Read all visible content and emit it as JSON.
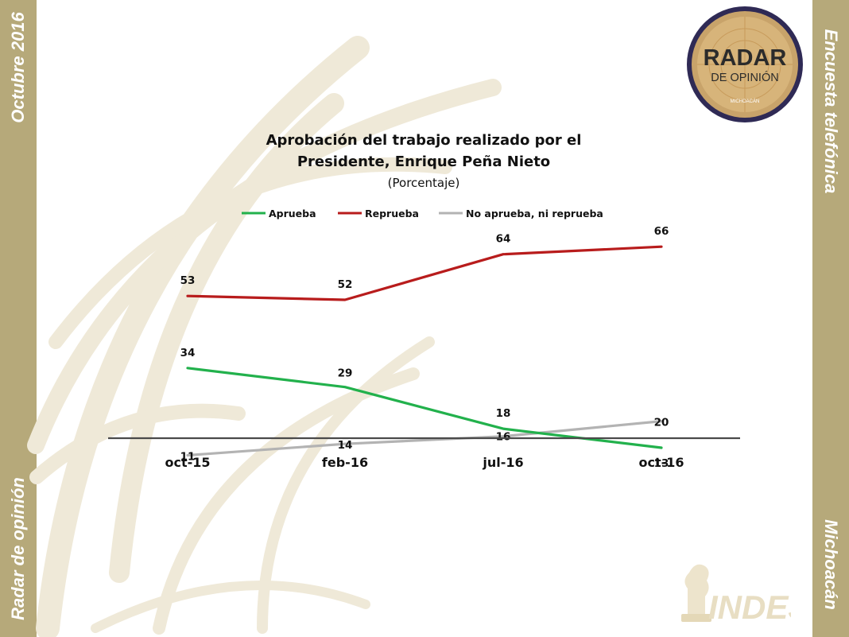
{
  "side": {
    "month": "Octubre 2016",
    "brand": "Radar de opinión",
    "survey": "Encuesta telefónica",
    "state": "Michoacán"
  },
  "logo": {
    "line1": "RADAR",
    "line2": "DE OPINIÓN",
    "line3": "MICHOACÁN"
  },
  "indes": {
    "text": "INDES"
  },
  "colors": {
    "band": "#b6a97a",
    "aprueba": "#22b14c",
    "reprueba": "#b81c1c",
    "neutral": "#b3b3b3"
  },
  "chart_data": {
    "type": "line",
    "title_line1": "Aprobación del trabajo realizado por el",
    "title_line2": "Presidente, Enrique Peña Nieto",
    "subtitle": "(Porcentaje)",
    "categories": [
      "oct-15",
      "feb-16",
      "jul-16",
      "oct-16"
    ],
    "series": [
      {
        "name": "Aprueba",
        "color": "#22b14c",
        "values": [
          34,
          29,
          18,
          13
        ]
      },
      {
        "name": "Reprueba",
        "color": "#b81c1c",
        "values": [
          53,
          52,
          64,
          66
        ]
      },
      {
        "name": "No aprueba, ni reprueba",
        "color": "#b3b3b3",
        "values": [
          11,
          14,
          16,
          20
        ]
      }
    ],
    "ylim": [
      0,
      75
    ],
    "grid": false,
    "legend_position": "top"
  }
}
